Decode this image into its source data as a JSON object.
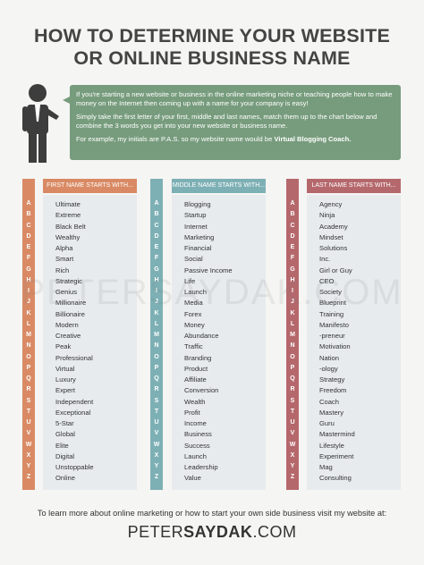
{
  "title": {
    "lines": [
      "HOW TO DETERMINE YOUR WEBSITE",
      "OR ONLINE BUSINESS NAME"
    ]
  },
  "intro": {
    "paragraphs": [
      "If you're starting a new website or business in the online marketing niche or teaching people how to make money on the Internet then coming up with a name for your company is easy!",
      "Simply take the first letter of your first, middle and last names, match them up to the chart below and combine the 3 words you get into your new website or business name.",
      {
        "text": "For example, my initials are P.A.S. so my website name would be",
        "bold": "Virtual Blogging Coach."
      }
    ]
  },
  "letters": [
    "A",
    "B",
    "C",
    "D",
    "E",
    "F",
    "G",
    "H",
    "I",
    "J",
    "K",
    "L",
    "M",
    "N",
    "O",
    "P",
    "Q",
    "R",
    "S",
    "T",
    "U",
    "V",
    "W",
    "X",
    "Y",
    "Z"
  ],
  "columns": [
    {
      "header": "FIRST NAME STARTS WITH...",
      "words": [
        "Ultimate",
        "Extreme",
        "Black Belt",
        "Wealthy",
        "Alpha",
        "Smart",
        "Rich",
        "Strategic",
        "Genius",
        "Millionaire",
        "Billionaire",
        "Modern",
        "Creative",
        "Peak",
        "Professional",
        "Virtual",
        "Luxury",
        "Expert",
        "Independent",
        "Exceptional",
        "5-Star",
        "Global",
        "Elite",
        "Digital",
        "Unstoppable",
        "Online"
      ]
    },
    {
      "header": "MIDDLE NAME STARTS WITH...",
      "words": [
        "Blogging",
        "Startup",
        "Internet",
        "Marketing",
        "Financial",
        "Social",
        "Passive Income",
        "Life",
        "Launch",
        "Media",
        "Forex",
        "Money",
        "Abundance",
        "Traffic",
        "Branding",
        "Product",
        "Affiliate",
        "Conversion",
        "Wealth",
        "Profit",
        "Income",
        "Business",
        "Success",
        "Launch",
        "Leadership",
        "Value"
      ]
    },
    {
      "header": "LAST NAME STARTS WITH...",
      "words": [
        "Agency",
        "Ninja",
        "Academy",
        "Mindset",
        "Solutions",
        "Inc.",
        "Girl or Guy",
        "CEO",
        "Society",
        "Blueprint",
        "Training",
        "Manifesto",
        "-preneur",
        "Motivation",
        "Nation",
        "-ology",
        "Strategy",
        "Freedom",
        "Coach",
        "Mastery",
        "Guru",
        "Mastermind",
        "Lifestyle",
        "Experiment",
        "Mag",
        "Consulting"
      ]
    }
  ],
  "watermark": "PETERSAYDAK.COM",
  "footer": {
    "text": "To learn more about online marketing or how to start your own side business visit my website at:",
    "brand": [
      "PETER",
      "SAYDAK",
      ".COM"
    ]
  }
}
